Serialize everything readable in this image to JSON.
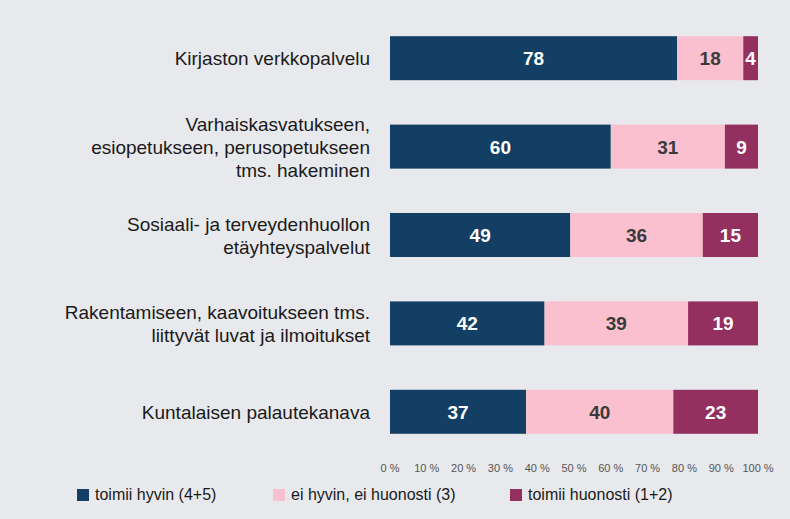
{
  "chart_data": {
    "type": "bar",
    "orientation": "horizontal",
    "stacked": true,
    "data_labels": true,
    "grid": false,
    "legend": "bottom",
    "categories": [
      "Kirjaston verkkopalvelu",
      "Varhaiskasvatukseen,\nesiopetukseen, perusopetukseen\ntms. hakeminen",
      "Sosiaali- ja terveydenhuollon\netäyhteyspalvelut",
      "Rakentamiseen, kaavoitukseen tms.\nliittyvät luvat ja ilmoitukset",
      "Kuntalaisen palautekanava"
    ],
    "series": [
      {
        "name": "toimii hyvin (4+5)",
        "color": "#123f63",
        "values": [
          78,
          60,
          49,
          42,
          37
        ]
      },
      {
        "name": "ei hyvin, ei huonosti (3)",
        "color": "#fbc0cf",
        "values": [
          18,
          31,
          36,
          39,
          40
        ]
      },
      {
        "name": "toimii huonosti (1+2)",
        "color": "#93305f",
        "values": [
          4,
          9,
          15,
          19,
          23
        ]
      }
    ],
    "xlim": [
      0,
      100
    ],
    "xticks": [
      {
        "value": 0,
        "label": "0 %"
      },
      {
        "value": 10,
        "label": "10 %"
      },
      {
        "value": 20,
        "label": "20 %"
      },
      {
        "value": 30,
        "label": "30 %"
      },
      {
        "value": 40,
        "label": "40 %"
      },
      {
        "value": 50,
        "label": "50 %"
      },
      {
        "value": 60,
        "label": "60 %"
      },
      {
        "value": 70,
        "label": "70 %"
      },
      {
        "value": 80,
        "label": "80 %"
      },
      {
        "value": 90,
        "label": "90 %"
      },
      {
        "value": 100,
        "label": "100 %"
      }
    ]
  }
}
